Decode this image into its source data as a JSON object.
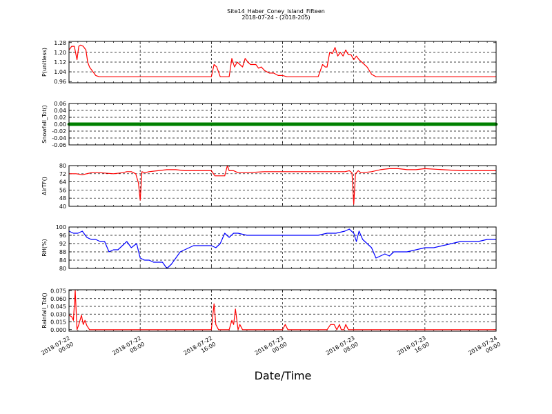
{
  "figure": {
    "title": "Site14_Haber_Coney_Island_Fifteen",
    "subtitle": "2018-07-24 - (2018-205)",
    "xlabel": "Date/Time",
    "x_ticks": [
      {
        "line1": "2018-07-22",
        "line2": "00:00",
        "h": 0
      },
      {
        "line1": "2018-07-22",
        "line2": "08:00",
        "h": 8
      },
      {
        "line1": "2018-07-22",
        "line2": "16:00",
        "h": 16
      },
      {
        "line1": "2018-07-23",
        "line2": "00:00",
        "h": 24
      },
      {
        "line1": "2018-07-23",
        "line2": "08:00",
        "h": 32
      },
      {
        "line1": "2018-07-23",
        "line2": "16:00",
        "h": 40
      },
      {
        "line1": "2018-07-24",
        "line2": "00:00",
        "h": 48
      }
    ]
  },
  "chart_data": [
    {
      "type": "line",
      "ylabel": "P(unitless)",
      "ylim": [
        0.95,
        1.29
      ],
      "yticks": [
        "0.96",
        "1.04",
        "1.12",
        "1.20",
        "1.28"
      ],
      "ytick_values": [
        0.96,
        1.04,
        1.12,
        1.2,
        1.28
      ],
      "color": "#ff0000",
      "x_hours": [
        0,
        0.3,
        0.6,
        0.9,
        1.1,
        1.3,
        1.6,
        1.9,
        2.1,
        2.3,
        2.6,
        3,
        3.4,
        4,
        8,
        16,
        16.3,
        16.6,
        17,
        17.6,
        18,
        18.3,
        18.6,
        18.9,
        19.2,
        19.5,
        19.8,
        20.1,
        20.4,
        20.7,
        21,
        21.3,
        21.6,
        22,
        22.5,
        23,
        23.5,
        24,
        24.5,
        25,
        28,
        28.5,
        28.8,
        29,
        29.3,
        29.6,
        29.9,
        30.2,
        30.5,
        30.8,
        31.1,
        31.4,
        31.7,
        32,
        32.3,
        32.6,
        32.9,
        33.2,
        33.5,
        34,
        34.5,
        35,
        36,
        40,
        48
      ],
      "values": [
        1.22,
        1.25,
        1.25,
        1.14,
        1.25,
        1.26,
        1.25,
        1.22,
        1.12,
        1.08,
        1.05,
        1.01,
        1.0,
        1.0,
        1.0,
        1.0,
        1.1,
        1.08,
        1.0,
        1.0,
        1.0,
        1.15,
        1.08,
        1.12,
        1.1,
        1.08,
        1.15,
        1.12,
        1.1,
        1.1,
        1.1,
        1.07,
        1.08,
        1.05,
        1.03,
        1.03,
        1.01,
        1.01,
        1.0,
        1.0,
        1.0,
        1.1,
        1.08,
        1.08,
        1.2,
        1.19,
        1.24,
        1.17,
        1.2,
        1.17,
        1.22,
        1.18,
        1.18,
        1.14,
        1.17,
        1.14,
        1.12,
        1.1,
        1.08,
        1.02,
        1.0,
        1.0,
        1.0,
        1.0,
        1.0
      ]
    },
    {
      "type": "line",
      "ylabel": "Snowfall_Tot()",
      "ylim": [
        -0.06,
        0.06
      ],
      "yticks": [
        "-0.06",
        "-0.04",
        "-0.02",
        "0.00",
        "0.02",
        "0.04",
        "0.06"
      ],
      "ytick_values": [
        -0.06,
        -0.04,
        -0.02,
        0.0,
        0.02,
        0.04,
        0.06
      ],
      "color": "#008000",
      "marker": "dot",
      "x_hours": [
        0,
        48
      ],
      "values": [
        0.0,
        0.0
      ]
    },
    {
      "type": "line",
      "ylabel": "AirTF()",
      "ylim": [
        40,
        80
      ],
      "yticks": [
        "40",
        "48",
        "56",
        "64",
        "72",
        "80"
      ],
      "ytick_values": [
        40,
        48,
        56,
        64,
        72,
        80
      ],
      "color": "#ff0000",
      "x_hours": [
        0,
        0.8,
        1.5,
        2.5,
        3.5,
        5,
        6,
        6.5,
        7,
        7.5,
        7.8,
        8,
        8.2,
        8.5,
        9,
        10,
        11,
        12,
        13,
        14,
        15,
        16,
        16.4,
        16.6,
        17,
        17.5,
        17.8,
        18,
        18.5,
        19,
        20,
        22,
        24,
        26,
        28,
        30,
        31,
        31.5,
        31.8,
        32,
        32.2,
        32.5,
        32.8,
        33,
        34,
        35,
        36,
        37,
        38,
        39,
        40,
        42,
        44,
        46,
        48
      ],
      "values": [
        72,
        72,
        71,
        73,
        73,
        72,
        73,
        74,
        74,
        72,
        63,
        46,
        74,
        73,
        74,
        75,
        76,
        76,
        75,
        75,
        75,
        75,
        70,
        70,
        70,
        70,
        80,
        75,
        75,
        73,
        73,
        74,
        74,
        74,
        74,
        74,
        74,
        75,
        73,
        42,
        72,
        75,
        73,
        73,
        74,
        76,
        77,
        77,
        76,
        76,
        77,
        76,
        75,
        75,
        75
      ]
    },
    {
      "type": "line",
      "ylabel": "RH(%)",
      "ylim": [
        80,
        100
      ],
      "yticks": [
        "80",
        "84",
        "88",
        "92",
        "96",
        "100"
      ],
      "ytick_values": [
        80,
        84,
        88,
        92,
        96,
        100
      ],
      "color": "#0000ff",
      "x_hours": [
        0,
        0.5,
        1,
        1.5,
        2,
        2.5,
        3,
        3.5,
        4,
        4.5,
        5,
        5.5,
        6,
        6.5,
        7,
        7.3,
        7.6,
        8,
        8.5,
        9,
        9.5,
        10,
        10.5,
        11,
        11.5,
        12,
        12.5,
        13,
        13.5,
        14,
        14.5,
        15,
        15.5,
        16,
        16.5,
        17,
        17.5,
        18,
        18.5,
        19,
        20,
        22,
        24,
        26,
        28,
        29,
        30,
        31,
        31.5,
        32,
        32.3,
        32.6,
        33,
        33.5,
        34,
        34.5,
        35,
        35.5,
        36,
        36.5,
        37,
        38,
        39,
        40,
        41,
        42,
        43,
        44,
        45,
        46,
        47,
        48
      ],
      "values": [
        98,
        97,
        97,
        98,
        95,
        94,
        94,
        93,
        93,
        88,
        89,
        89,
        91,
        93,
        90,
        91,
        92,
        85,
        84,
        84,
        83,
        83,
        83,
        80,
        82,
        85,
        88,
        89,
        90,
        91,
        91,
        91,
        91,
        91,
        90,
        92,
        97,
        95,
        97,
        97,
        96,
        96,
        96,
        96,
        96,
        97,
        97,
        98,
        99,
        97,
        93,
        98,
        94,
        92,
        90,
        85,
        86,
        87,
        86,
        88,
        88,
        88,
        89,
        90,
        90,
        91,
        92,
        93,
        93,
        93,
        94,
        94
      ]
    },
    {
      "type": "line",
      "ylabel": "Rainfall_Tot()",
      "ylim": [
        -0.003,
        0.077
      ],
      "yticks": [
        "0.000",
        "0.015",
        "0.030",
        "0.045",
        "0.060",
        "0.075"
      ],
      "ytick_values": [
        0.0,
        0.015,
        0.03,
        0.045,
        0.06,
        0.075
      ],
      "color": "#ff0000",
      "x_hours": [
        0,
        0.3,
        0.5,
        0.7,
        0.9,
        1.1,
        1.4,
        1.6,
        1.8,
        2,
        2.3,
        2.6,
        3,
        16,
        16.3,
        16.5,
        16.8,
        17,
        18,
        18.3,
        18.5,
        18.7,
        19,
        19.2,
        19.5,
        19.8,
        24,
        24.3,
        24.6,
        29,
        29.4,
        29.8,
        30.1,
        30.4,
        30.6,
        30.9,
        31.1,
        31.4,
        31.7,
        48
      ],
      "values": [
        0.028,
        0.025,
        0.018,
        0.076,
        0.0,
        0.01,
        0.028,
        0.01,
        0.018,
        0.008,
        0.0,
        0.0,
        0.0,
        0.0,
        0.05,
        0.01,
        0.0,
        0.0,
        0.0,
        0.018,
        0.01,
        0.04,
        0.0,
        0.01,
        0.0,
        0.0,
        0.0,
        0.01,
        0.0,
        0.0,
        0.01,
        0.01,
        0.0,
        0.01,
        0.0,
        0.0,
        0.01,
        0.0,
        0.0,
        0.0
      ]
    }
  ]
}
